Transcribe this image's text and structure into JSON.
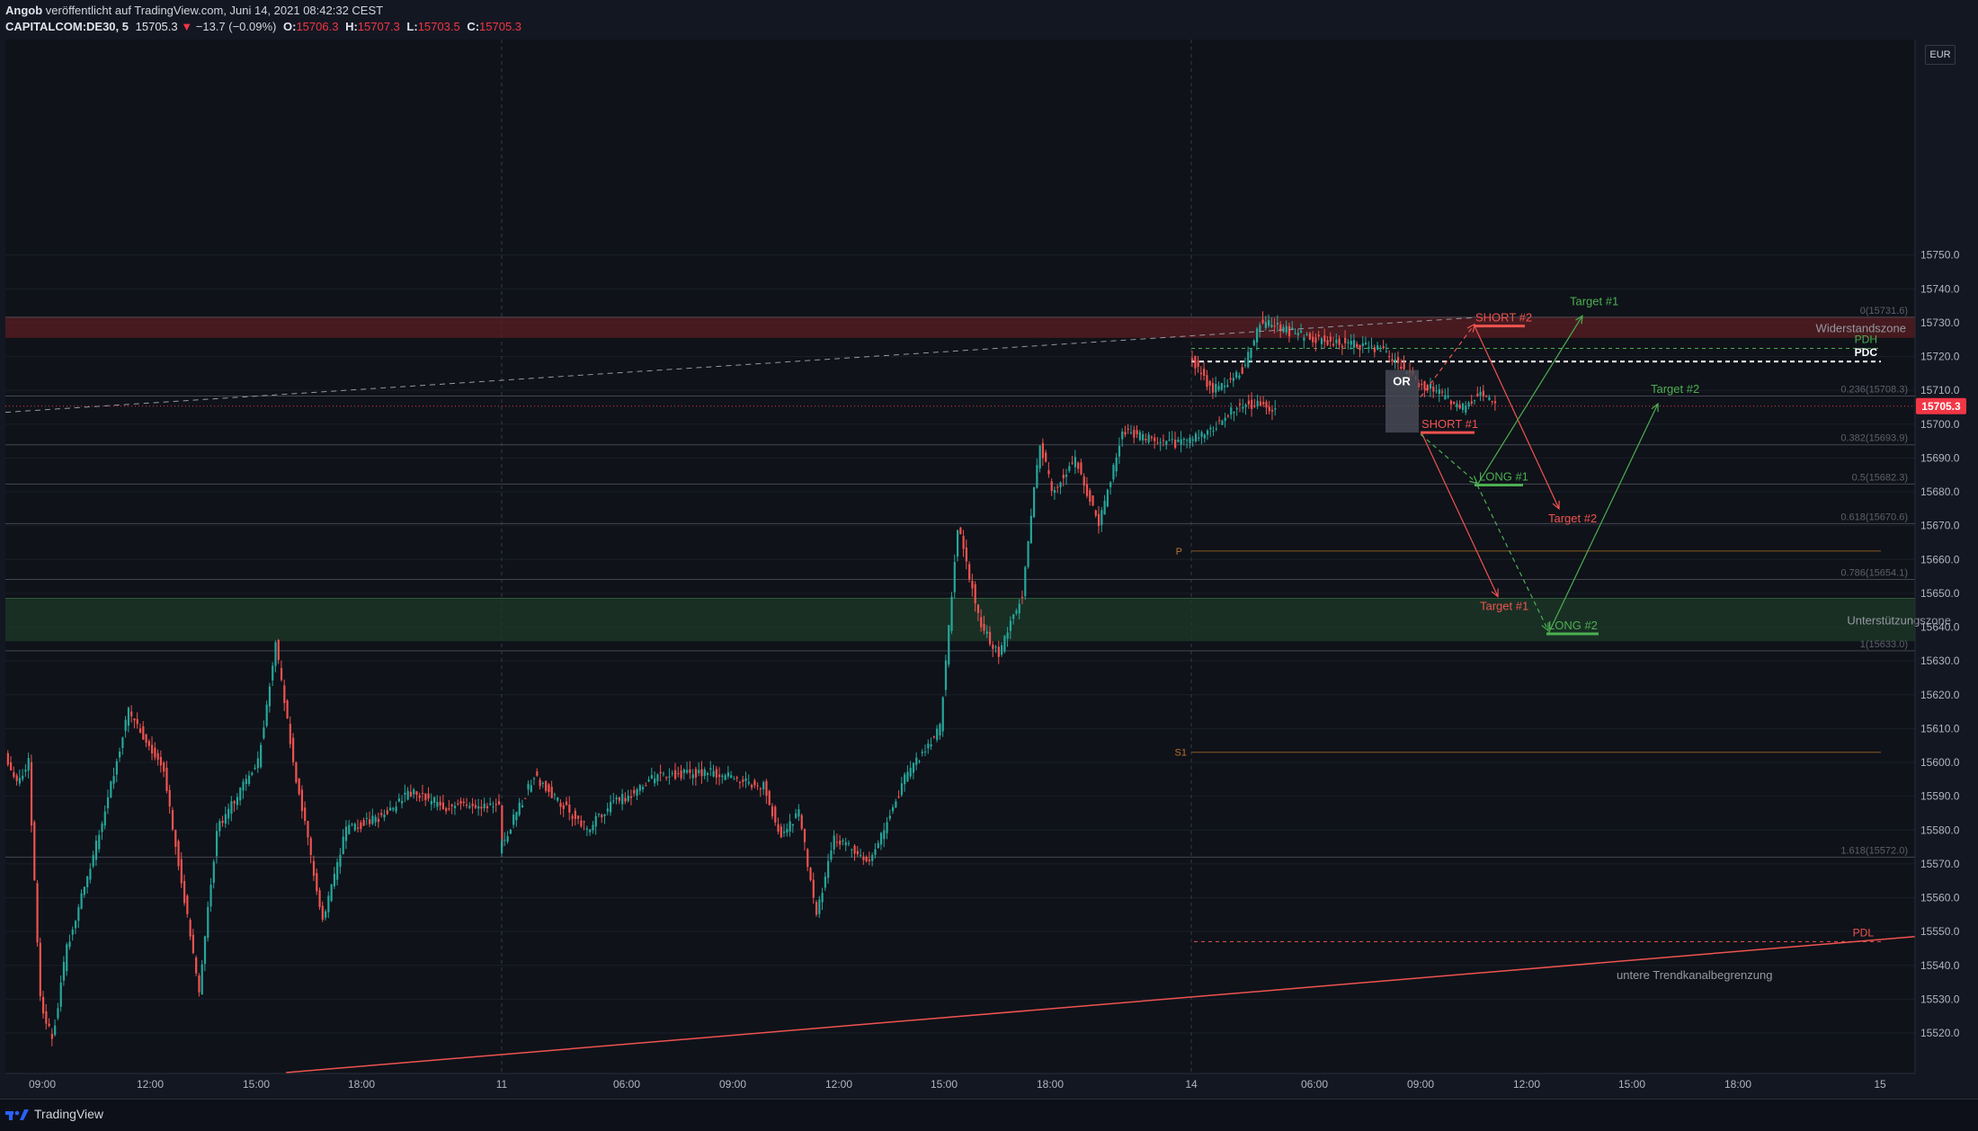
{
  "header": {
    "author": "Angob",
    "published_text": "veröffentlicht auf TradingView.com, Juni 14, 2021 08:42:32 CEST",
    "symbol": "CAPITALCOM:DE30, 5",
    "last": "15705.3",
    "change": "−13.7 (−0.09%)",
    "o_label": "O:",
    "o_value": "15706.3",
    "h_label": "H:",
    "h_value": "15707.3",
    "l_label": "L:",
    "l_value": "15703.5",
    "c_label": "C:",
    "c_value": "15705.3"
  },
  "currency_label": "EUR",
  "footer": {
    "brand": "TradingView"
  },
  "colors": {
    "up": "#26a69a",
    "down": "#ef5350",
    "background": "#131722",
    "resistance_zone": "#5a1d22",
    "support_zone": "#1e3a28"
  },
  "chart_data": {
    "type": "candlestick",
    "instrument": "CAPITALCOM:DE30",
    "timeframe": "5",
    "ylim": [
      15515,
      15755
    ],
    "y_ticks": [
      15520,
      15530,
      15540,
      15550,
      15560,
      15570,
      15580,
      15590,
      15600,
      15610,
      15620,
      15630,
      15640,
      15650,
      15660,
      15670,
      15680,
      15690,
      15700,
      15710,
      15720,
      15730,
      15740,
      15750
    ],
    "x_tick_labels": [
      "09:00",
      "12:00",
      "15:00",
      "18:00",
      "11",
      "06:00",
      "09:00",
      "12:00",
      "15:00",
      "18:00",
      "14",
      "06:00",
      "09:00",
      "12:00",
      "15:00",
      "18:00",
      "15"
    ],
    "last_price_label": "15705.3",
    "price_path": [
      {
        "t": "10 08:00",
        "p": 15603
      },
      {
        "t": "10 08:20",
        "p": 15594
      },
      {
        "t": "10 08:40",
        "p": 15600
      },
      {
        "t": "10 09:00",
        "p": 15530
      },
      {
        "t": "10 09:20",
        "p": 15518
      },
      {
        "t": "10 09:45",
        "p": 15545
      },
      {
        "t": "10 10:30",
        "p": 15572
      },
      {
        "t": "10 11:30",
        "p": 15615
      },
      {
        "t": "10 12:30",
        "p": 15598
      },
      {
        "t": "10 13:30",
        "p": 15532
      },
      {
        "t": "10 14:00",
        "p": 15580
      },
      {
        "t": "10 15:10",
        "p": 15600
      },
      {
        "t": "10 15:40",
        "p": 15635
      },
      {
        "t": "10 16:10",
        "p": 15600
      },
      {
        "t": "10 17:00",
        "p": 15553
      },
      {
        "t": "10 17:40",
        "p": 15580
      },
      {
        "t": "10 18:30",
        "p": 15583
      },
      {
        "t": "10 19:30",
        "p": 15591
      },
      {
        "t": "10 20:30",
        "p": 15587
      },
      {
        "t": "10 22:00",
        "p": 15588
      },
      {
        "t": "11 00:00",
        "p": 15574
      },
      {
        "t": "11 01:00",
        "p": 15596
      },
      {
        "t": "11 02:30",
        "p": 15580
      },
      {
        "t": "11 03:00",
        "p": 15586
      },
      {
        "t": "11 04:30",
        "p": 15596
      },
      {
        "t": "11 06:00",
        "p": 15597
      },
      {
        "t": "11 07:30",
        "p": 15593
      },
      {
        "t": "11 08:00",
        "p": 15578
      },
      {
        "t": "11 08:30",
        "p": 15585
      },
      {
        "t": "11 09:00",
        "p": 15555
      },
      {
        "t": "11 09:30",
        "p": 15578
      },
      {
        "t": "11 10:30",
        "p": 15570
      },
      {
        "t": "11 11:30",
        "p": 15595
      },
      {
        "t": "11 12:30",
        "p": 15610
      },
      {
        "t": "11 13:00",
        "p": 15670
      },
      {
        "t": "11 13:40",
        "p": 15640
      },
      {
        "t": "11 14:10",
        "p": 15632
      },
      {
        "t": "11 14:50",
        "p": 15650
      },
      {
        "t": "11 15:20",
        "p": 15695
      },
      {
        "t": "11 15:40",
        "p": 15680
      },
      {
        "t": "11 16:20",
        "p": 15690
      },
      {
        "t": "11 17:00",
        "p": 15670
      },
      {
        "t": "11 17:40",
        "p": 15698
      },
      {
        "t": "11 19:00",
        "p": 15694
      },
      {
        "t": "11 20:00",
        "p": 15697
      },
      {
        "t": "11 21:00",
        "p": 15706
      },
      {
        "t": "11 22:00",
        "p": 15705
      },
      {
        "t": "14 00:00",
        "p": 15720
      },
      {
        "t": "14 00:40",
        "p": 15710
      },
      {
        "t": "14 01:30",
        "p": 15716
      },
      {
        "t": "14 02:00",
        "p": 15730
      },
      {
        "t": "14 02:40",
        "p": 15728
      },
      {
        "t": "14 03:30",
        "p": 15725
      },
      {
        "t": "14 04:30",
        "p": 15724
      },
      {
        "t": "14 05:30",
        "p": 15722
      },
      {
        "t": "14 06:30",
        "p": 15712
      },
      {
        "t": "14 07:00",
        "p": 15710
      },
      {
        "t": "14 07:40",
        "p": 15704
      },
      {
        "t": "14 08:10",
        "p": 15709
      },
      {
        "t": "14 08:40",
        "p": 15705.3
      }
    ],
    "price_levels": [
      {
        "label": "0(15731.6)",
        "value": 15731.6
      },
      {
        "label": "0.236(15708.3)",
        "value": 15708.3
      },
      {
        "label": "0.382(15693.9)",
        "value": 15693.9
      },
      {
        "label": "0.5(15682.3)",
        "value": 15682.3
      },
      {
        "label": "0.618(15670.6)",
        "value": 15670.6
      },
      {
        "label": "0.786(15654.1)",
        "value": 15654.1
      },
      {
        "label": "1(15633.0)",
        "value": 15633.0
      },
      {
        "label": "1.618(15572.0)",
        "value": 15572.0
      }
    ],
    "zones": [
      {
        "label": "Widerstandszone",
        "from": 15725.5,
        "to": 15731.6
      },
      {
        "label": "Unterstützungszone",
        "from": 15635.8,
        "to": 15648.5
      }
    ],
    "lines": [
      {
        "label": "PDH",
        "value": 15722.4
      },
      {
        "label": "PDC",
        "value": 15718.5
      },
      {
        "label": "P",
        "value": 15662.5
      },
      {
        "label": "S1",
        "value": 15603
      },
      {
        "label": "PDL",
        "value": 15547
      }
    ],
    "trade_plan": [
      {
        "label": "SHORT #2",
        "entry": 15729,
        "target_label": "Target #2",
        "target": 15675
      },
      {
        "label": "SHORT #1",
        "entry": 15697.5,
        "target_label": "Target #1",
        "target": 15649
      },
      {
        "label": "LONG #1",
        "entry": 15682,
        "target_label": "Target #1",
        "target": 15732
      },
      {
        "label": "LONG #2",
        "entry": 15638,
        "target_label": "Target #2",
        "target": 15706
      }
    ],
    "box_label": "OR",
    "trendline_label": "untere Trendkanalbegrenzung"
  }
}
